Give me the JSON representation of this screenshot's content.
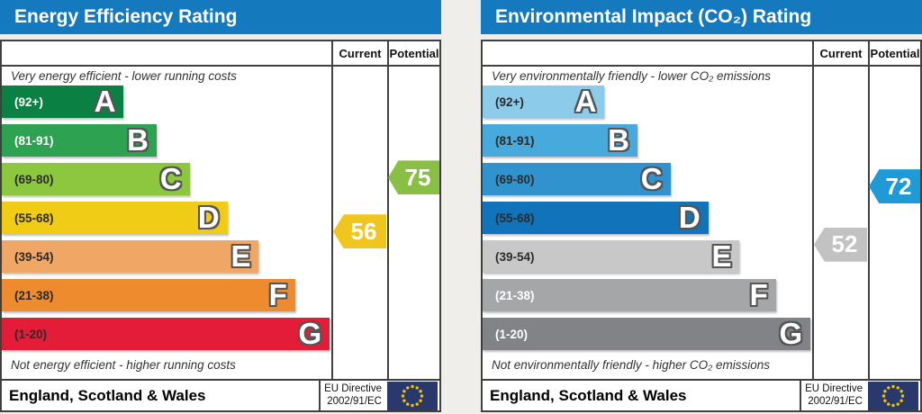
{
  "page": {
    "background": "#f0eeea"
  },
  "left_panel": {
    "title": "Energy Efficiency Rating",
    "header_color": "#1579be",
    "col_current": "Current",
    "col_potential": "Potential",
    "caption_top": "Very energy efficient - lower running costs",
    "caption_bottom": "Not energy efficient - higher running costs",
    "bands": [
      {
        "letter": "A",
        "range": "(92+)",
        "min": 92,
        "max": 100,
        "color": "#0a8043",
        "width_pct": 37,
        "range_text_color": "#ffffff"
      },
      {
        "letter": "B",
        "range": "(81-91)",
        "min": 81,
        "max": 91,
        "color": "#2da351",
        "width_pct": 47,
        "range_text_color": "#ffffff"
      },
      {
        "letter": "C",
        "range": "(69-80)",
        "min": 69,
        "max": 80,
        "color": "#8dc63f",
        "width_pct": 57,
        "range_text_color": "#2b2b2b"
      },
      {
        "letter": "D",
        "range": "(55-68)",
        "min": 55,
        "max": 68,
        "color": "#f0cc16",
        "width_pct": 68.5,
        "range_text_color": "#2b2b2b"
      },
      {
        "letter": "E",
        "range": "(39-54)",
        "min": 39,
        "max": 54,
        "color": "#f0a664",
        "width_pct": 78,
        "range_text_color": "#2b2b2b"
      },
      {
        "letter": "F",
        "range": "(21-38)",
        "min": 21,
        "max": 38,
        "color": "#ee8b2f",
        "width_pct": 89,
        "range_text_color": "#2b2b2b"
      },
      {
        "letter": "G",
        "range": "(1-20)",
        "min": 1,
        "max": 20,
        "color": "#e31c38",
        "width_pct": 99.5,
        "range_text_color": "#2b2b2b"
      }
    ],
    "current": {
      "label": "56",
      "value": 56,
      "band_index": 3,
      "color": "#f0c51d"
    },
    "potential": {
      "label": "75",
      "value": 75,
      "band_index": 2,
      "color": "#8abf45"
    },
    "footer_region": "England, Scotland & Wales",
    "directive_line1": "EU Directive",
    "directive_line2": "2002/91/EC",
    "flag_color": "#29396b",
    "flag_star_color": "#f3c500"
  },
  "right_panel": {
    "title": "Environmental Impact (CO₂) Rating",
    "header_color": "#1579be",
    "col_current": "Current",
    "col_potential": "Potential",
    "caption_top": "Very environmentally friendly - lower CO₂ emissions",
    "caption_bottom": "Not environmentally friendly - higher CO₂ emissions",
    "bands": [
      {
        "letter": "A",
        "range": "(92+)",
        "min": 92,
        "max": 100,
        "color": "#8ccbe9",
        "width_pct": 37,
        "range_text_color": "#2b2b2b"
      },
      {
        "letter": "B",
        "range": "(81-91)",
        "min": 81,
        "max": 91,
        "color": "#48a9dd",
        "width_pct": 47,
        "range_text_color": "#2b2b2b"
      },
      {
        "letter": "C",
        "range": "(69-80)",
        "min": 69,
        "max": 80,
        "color": "#3193cd",
        "width_pct": 57,
        "range_text_color": "#2b2b2b"
      },
      {
        "letter": "D",
        "range": "(55-68)",
        "min": 55,
        "max": 68,
        "color": "#1173ba",
        "width_pct": 68.5,
        "range_text_color": "#2b2b2b"
      },
      {
        "letter": "E",
        "range": "(39-54)",
        "min": 39,
        "max": 54,
        "color": "#c8c8c8",
        "width_pct": 78,
        "range_text_color": "#2b2b2b"
      },
      {
        "letter": "F",
        "range": "(21-38)",
        "min": 21,
        "max": 38,
        "color": "#a5a6a8",
        "width_pct": 89,
        "range_text_color": "#ffffff"
      },
      {
        "letter": "G",
        "range": "(1-20)",
        "min": 1,
        "max": 20,
        "color": "#828386",
        "width_pct": 99.5,
        "range_text_color": "#ffffff"
      }
    ],
    "current": {
      "label": "52",
      "value": 52,
      "band_index": 4,
      "color": "#c2c2c2"
    },
    "potential": {
      "label": "72",
      "value": 72,
      "band_index": 2,
      "color": "#1e9bd7"
    },
    "footer_region": "England, Scotland & Wales",
    "directive_line1": "EU Directive",
    "directive_line2": "2002/91/EC",
    "flag_color": "#29396b",
    "flag_star_color": "#f3c500"
  },
  "chart_data": [
    {
      "type": "bar",
      "title": "Energy Efficiency Rating",
      "orientation": "horizontal",
      "categories": [
        "A",
        "B",
        "C",
        "D",
        "E",
        "F",
        "G"
      ],
      "category_ranges": [
        "(92+)",
        "(81-91)",
        "(69-80)",
        "(55-68)",
        "(39-54)",
        "(21-38)",
        "(1-20)"
      ],
      "bar_length_pct": [
        37,
        47,
        57,
        68.5,
        78,
        89,
        99.5
      ],
      "bar_colors": [
        "#0a8043",
        "#2da351",
        "#8dc63f",
        "#f0cc16",
        "#f0a664",
        "#ee8b2f",
        "#e31c38"
      ],
      "markers": [
        {
          "name": "Current",
          "value": 56,
          "band": "D",
          "color": "#f0c51d"
        },
        {
          "name": "Potential",
          "value": 75,
          "band": "C",
          "color": "#8abf45"
        }
      ],
      "annotations": [
        "Very energy efficient - lower running costs",
        "Not energy efficient - higher running costs",
        "England, Scotland & Wales",
        "EU Directive 2002/91/EC"
      ]
    },
    {
      "type": "bar",
      "title": "Environmental Impact (CO₂) Rating",
      "orientation": "horizontal",
      "categories": [
        "A",
        "B",
        "C",
        "D",
        "E",
        "F",
        "G"
      ],
      "category_ranges": [
        "(92+)",
        "(81-91)",
        "(69-80)",
        "(55-68)",
        "(39-54)",
        "(21-38)",
        "(1-20)"
      ],
      "bar_length_pct": [
        37,
        47,
        57,
        68.5,
        78,
        89,
        99.5
      ],
      "bar_colors": [
        "#8ccbe9",
        "#48a9dd",
        "#3193cd",
        "#1173ba",
        "#c8c8c8",
        "#a5a6a8",
        "#828386"
      ],
      "markers": [
        {
          "name": "Current",
          "value": 52,
          "band": "E",
          "color": "#c2c2c2"
        },
        {
          "name": "Potential",
          "value": 72,
          "band": "C",
          "color": "#1e9bd7"
        }
      ],
      "annotations": [
        "Very environmentally friendly - lower CO₂ emissions",
        "Not environmentally friendly - higher CO₂ emissions",
        "England, Scotland & Wales",
        "EU Directive 2002/91/EC"
      ]
    }
  ]
}
